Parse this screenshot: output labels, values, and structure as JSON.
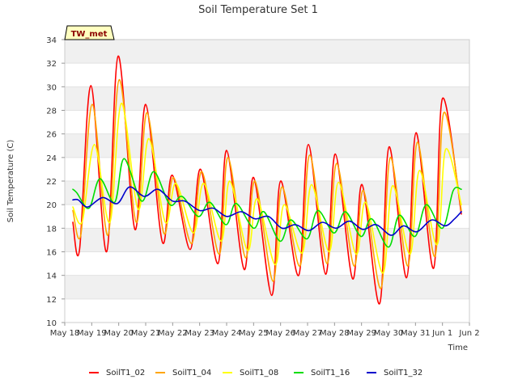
{
  "chart_data": {
    "type": "line",
    "title": "Soil Temperature Set 1",
    "xlabel": "Time",
    "ylabel": "Soil Temperature (C)",
    "site_badge": "TW_met",
    "ylim": [
      10,
      34
    ],
    "yticks": [
      10,
      12,
      14,
      16,
      18,
      20,
      22,
      24,
      26,
      28,
      30,
      32,
      34
    ],
    "xlim": [
      0,
      15
    ],
    "xticks": [
      {
        "pos": 0,
        "label": "May 18"
      },
      {
        "pos": 1,
        "label": "May 19"
      },
      {
        "pos": 2,
        "label": "May 20"
      },
      {
        "pos": 3,
        "label": "May 21"
      },
      {
        "pos": 4,
        "label": "May 22"
      },
      {
        "pos": 5,
        "label": "May 23"
      },
      {
        "pos": 6,
        "label": "May 24"
      },
      {
        "pos": 7,
        "label": "May 25"
      },
      {
        "pos": 8,
        "label": "May 26"
      },
      {
        "pos": 9,
        "label": "May 27"
      },
      {
        "pos": 10,
        "label": "May 28"
      },
      {
        "pos": 11,
        "label": "May 29"
      },
      {
        "pos": 12,
        "label": "May 30"
      },
      {
        "pos": 13,
        "label": "May 31"
      },
      {
        "pos": 14,
        "label": "Jun 1"
      },
      {
        "pos": 15,
        "label": "Jun 2"
      }
    ],
    "grid": "horizontal bands",
    "legend_position": "bottom",
    "series": [
      {
        "name": "SoilT1_02",
        "color": "#ff0000",
        "points": [
          [
            0.3,
            18.5
          ],
          [
            0.55,
            16.2
          ],
          [
            0.97,
            30.1
          ],
          [
            1.55,
            16.0
          ],
          [
            1.98,
            32.6
          ],
          [
            2.6,
            17.9
          ],
          [
            3.0,
            28.5
          ],
          [
            3.62,
            16.8
          ],
          [
            3.98,
            22.5
          ],
          [
            4.65,
            16.2
          ],
          [
            5.03,
            23.0
          ],
          [
            5.68,
            15.0
          ],
          [
            6.0,
            24.6
          ],
          [
            6.65,
            14.5
          ],
          [
            7.0,
            22.3
          ],
          [
            7.67,
            12.3
          ],
          [
            8.0,
            22.0
          ],
          [
            8.67,
            14.0
          ],
          [
            9.03,
            25.1
          ],
          [
            9.67,
            14.1
          ],
          [
            10.03,
            24.3
          ],
          [
            10.67,
            13.7
          ],
          [
            11.02,
            21.7
          ],
          [
            11.67,
            11.6
          ],
          [
            12.02,
            24.9
          ],
          [
            12.67,
            13.8
          ],
          [
            13.02,
            26.1
          ],
          [
            13.67,
            14.6
          ],
          [
            14.0,
            29.0
          ],
          [
            14.7,
            19.2
          ]
        ]
      },
      {
        "name": "SoilT1_04",
        "color": "#ffa500",
        "points": [
          [
            0.3,
            19.5
          ],
          [
            0.6,
            17.5
          ],
          [
            1.02,
            28.5
          ],
          [
            1.6,
            17.4
          ],
          [
            2.02,
            30.6
          ],
          [
            2.65,
            18.5
          ],
          [
            3.05,
            27.8
          ],
          [
            3.67,
            17.6
          ],
          [
            4.03,
            22.3
          ],
          [
            4.7,
            16.7
          ],
          [
            5.08,
            22.8
          ],
          [
            5.73,
            15.8
          ],
          [
            6.05,
            24.0
          ],
          [
            6.7,
            15.5
          ],
          [
            7.05,
            22.0
          ],
          [
            7.72,
            13.5
          ],
          [
            8.05,
            21.5
          ],
          [
            8.72,
            14.8
          ],
          [
            9.08,
            24.2
          ],
          [
            9.72,
            15.0
          ],
          [
            10.08,
            23.5
          ],
          [
            10.72,
            14.8
          ],
          [
            11.07,
            21.2
          ],
          [
            11.72,
            12.9
          ],
          [
            12.07,
            24.0
          ],
          [
            12.72,
            14.8
          ],
          [
            13.07,
            25.3
          ],
          [
            13.72,
            15.6
          ],
          [
            14.05,
            27.8
          ],
          [
            14.7,
            19.5
          ]
        ]
      },
      {
        "name": "SoilT1_08",
        "color": "#ffff00",
        "points": [
          [
            0.3,
            19.8
          ],
          [
            0.65,
            18.6
          ],
          [
            1.1,
            25.1
          ],
          [
            1.67,
            18.5
          ],
          [
            2.1,
            28.6
          ],
          [
            2.72,
            19.6
          ],
          [
            3.12,
            25.6
          ],
          [
            3.73,
            18.5
          ],
          [
            4.12,
            21.8
          ],
          [
            4.77,
            17.6
          ],
          [
            5.15,
            21.8
          ],
          [
            5.8,
            16.9
          ],
          [
            6.12,
            22.0
          ],
          [
            6.78,
            16.1
          ],
          [
            7.13,
            20.5
          ],
          [
            7.8,
            14.9
          ],
          [
            8.13,
            20.0
          ],
          [
            8.8,
            15.9
          ],
          [
            9.15,
            21.7
          ],
          [
            9.8,
            16.0
          ],
          [
            10.15,
            21.9
          ],
          [
            10.8,
            15.8
          ],
          [
            11.15,
            20.2
          ],
          [
            11.8,
            14.2
          ],
          [
            12.15,
            21.6
          ],
          [
            12.8,
            15.8
          ],
          [
            13.15,
            22.9
          ],
          [
            13.8,
            16.6
          ],
          [
            14.12,
            24.7
          ],
          [
            14.7,
            20.0
          ]
        ]
      },
      {
        "name": "SoilT1_16",
        "color": "#00dd00",
        "points": [
          [
            0.3,
            21.3
          ],
          [
            0.45,
            21.0
          ],
          [
            0.9,
            19.7
          ],
          [
            1.3,
            22.2
          ],
          [
            1.85,
            20.2
          ],
          [
            2.2,
            23.9
          ],
          [
            2.85,
            20.3
          ],
          [
            3.3,
            22.8
          ],
          [
            3.9,
            20.0
          ],
          [
            4.35,
            20.7
          ],
          [
            4.95,
            19.0
          ],
          [
            5.38,
            20.2
          ],
          [
            5.98,
            18.3
          ],
          [
            6.35,
            20.1
          ],
          [
            7.0,
            18.0
          ],
          [
            7.38,
            19.4
          ],
          [
            7.98,
            16.9
          ],
          [
            8.38,
            18.7
          ],
          [
            8.98,
            17.1
          ],
          [
            9.38,
            19.5
          ],
          [
            9.98,
            17.6
          ],
          [
            10.4,
            19.4
          ],
          [
            10.98,
            17.3
          ],
          [
            11.38,
            18.8
          ],
          [
            12.0,
            16.4
          ],
          [
            12.4,
            19.1
          ],
          [
            12.98,
            17.3
          ],
          [
            13.4,
            20.0
          ],
          [
            14.0,
            18.0
          ],
          [
            14.4,
            21.2
          ],
          [
            14.7,
            21.3
          ]
        ]
      },
      {
        "name": "SoilT1_32",
        "color": "#0000cc",
        "points": [
          [
            0.3,
            20.4
          ],
          [
            0.5,
            20.4
          ],
          [
            0.85,
            19.8
          ],
          [
            1.4,
            20.6
          ],
          [
            1.95,
            20.1
          ],
          [
            2.4,
            21.5
          ],
          [
            2.95,
            20.7
          ],
          [
            3.45,
            21.3
          ],
          [
            4.0,
            20.3
          ],
          [
            4.45,
            20.3
          ],
          [
            5.0,
            19.5
          ],
          [
            5.5,
            19.7
          ],
          [
            6.0,
            19.0
          ],
          [
            6.55,
            19.4
          ],
          [
            7.05,
            18.8
          ],
          [
            7.55,
            19.0
          ],
          [
            8.05,
            18.0
          ],
          [
            8.55,
            18.3
          ],
          [
            9.05,
            17.8
          ],
          [
            9.55,
            18.5
          ],
          [
            10.05,
            18.0
          ],
          [
            10.55,
            18.6
          ],
          [
            11.05,
            17.9
          ],
          [
            11.55,
            18.3
          ],
          [
            12.1,
            17.4
          ],
          [
            12.55,
            18.2
          ],
          [
            13.05,
            17.7
          ],
          [
            13.6,
            18.7
          ],
          [
            14.1,
            18.2
          ],
          [
            14.45,
            18.8
          ],
          [
            14.7,
            19.4
          ]
        ]
      }
    ]
  }
}
